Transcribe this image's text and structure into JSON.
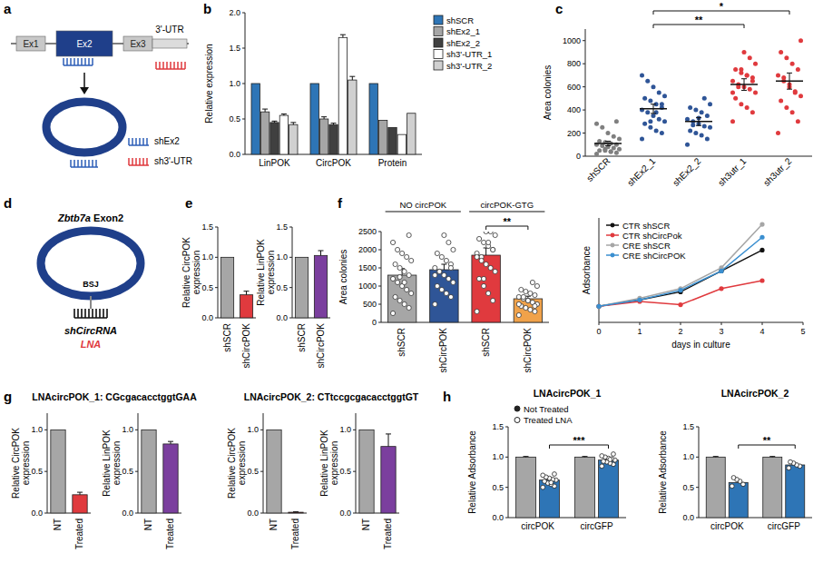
{
  "panel_labels": [
    "a",
    "b",
    "c",
    "d",
    "e",
    "f",
    "g",
    "h"
  ],
  "diagrams": {
    "a": {
      "exons": [
        "Ex1",
        "Ex2",
        "Ex3",
        "3'-UTR"
      ],
      "legend": [
        "shEx2",
        "sh3'-UTR"
      ]
    },
    "d": {
      "title": "Zbtb7a Exon2",
      "junction": "BSJ",
      "targets": [
        "shCircRNA",
        "LNA"
      ]
    }
  },
  "chart_data": [
    {
      "type": "bar",
      "ylabel": "Relative expression",
      "categories": [
        "LinPOK",
        "CircPOK",
        "Protein"
      ],
      "series": [
        {
          "name": "shSCR",
          "color": "#2e75b6",
          "values": [
            1,
            1,
            1
          ]
        },
        {
          "name": "shEx2_1",
          "color": "#a6a6a6",
          "values": [
            0.6,
            0.5,
            0.48
          ],
          "errors": [
            0.04,
            0.03,
            null
          ]
        },
        {
          "name": "shEx2_2",
          "color": "#404040",
          "values": [
            0.45,
            0.42,
            0.38
          ],
          "errors": [
            0.02,
            0.02,
            null
          ]
        },
        {
          "name": "sh3'-UTR_1",
          "color": "#ffffff",
          "values": [
            0.55,
            1.65,
            0.28
          ],
          "errors": [
            0.02,
            0.04,
            null
          ]
        },
        {
          "name": "sh3'-UTR_2",
          "color": "#d0d0d0",
          "values": [
            0.42,
            1.05,
            0.58
          ],
          "errors": [
            0.03,
            0.05,
            null
          ]
        }
      ],
      "ylim": [
        0,
        2
      ],
      "yticks": [
        {
          "value": 0,
          "label": "0.0"
        },
        0.5,
        {
          "value": 1,
          "label": "1.0"
        },
        1.5,
        {
          "value": 2,
          "label": "2.0"
        }
      ],
      "legend": "right"
    },
    {
      "type": "dot",
      "ylabel": "Area colonies",
      "categories": [
        "shSCR",
        "shEx2_1",
        "shEx2_2",
        "sh3utr_1",
        "sh3utr_2"
      ],
      "colors": [
        "#7f7f7f",
        "#2f5597",
        "#2f5597",
        "#e03a3e",
        "#e03a3e"
      ],
      "values": [
        110,
        410,
        300,
        620,
        650
      ],
      "errors": [
        20,
        40,
        35,
        50,
        70
      ],
      "points": [
        [
          20,
          30,
          40,
          50,
          50,
          60,
          70,
          80,
          90,
          100,
          100,
          110,
          120,
          130,
          150,
          170,
          200,
          250,
          280,
          300,
          40,
          60
        ],
        [
          150,
          200,
          220,
          250,
          280,
          300,
          320,
          350,
          380,
          400,
          420,
          450,
          480,
          500,
          520,
          550,
          600,
          650,
          700,
          450,
          380,
          300
        ],
        [
          100,
          150,
          180,
          200,
          220,
          250,
          260,
          280,
          300,
          320,
          350,
          380,
          400,
          420,
          450,
          500,
          330,
          270
        ],
        [
          300,
          380,
          420,
          450,
          500,
          550,
          580,
          600,
          620,
          650,
          680,
          700,
          720,
          750,
          800,
          850,
          900,
          600,
          550,
          650,
          700,
          750
        ],
        [
          200,
          300,
          380,
          420,
          480,
          520,
          560,
          600,
          650,
          700,
          750,
          800,
          850,
          900,
          1000,
          550,
          620,
          680
        ]
      ],
      "ylim": [
        0,
        1100
      ],
      "yticks": [
        0,
        200,
        400,
        600,
        800,
        1000
      ],
      "annotations": [
        {
          "text": "*",
          "from": 1,
          "to": 4
        },
        {
          "text": "**",
          "from": 1,
          "to": 3
        }
      ]
    },
    {
      "type": "bar",
      "ylabel": "Relative CircPOK expression",
      "categories": [
        "shSCR",
        "shCircPOK"
      ],
      "values": [
        1,
        0.38
      ],
      "errors": [
        null,
        0.06
      ],
      "colors": [
        "#a6a6a6",
        "#e03a3e"
      ],
      "ylim": [
        0,
        1.5
      ],
      "yticks": [
        {
          "value": 0,
          "label": "0.0"
        },
        0.5,
        {
          "value": 1,
          "label": "1.0"
        },
        1.5
      ]
    },
    {
      "type": "bar",
      "ylabel": "Relative LinPOK expression",
      "categories": [
        "shSCR",
        "shCircPOK"
      ],
      "values": [
        1,
        1.03
      ],
      "errors": [
        null,
        0.08
      ],
      "colors": [
        "#a6a6a6",
        "#7b3f9e"
      ],
      "ylim": [
        0,
        1.5
      ],
      "yticks": [
        {
          "value": 0,
          "label": "0.0"
        },
        0.5,
        {
          "value": 1,
          "label": "1.0"
        },
        1.5
      ]
    },
    {
      "type": "bar",
      "ylabel": "Area colonies",
      "categories": [
        "shSCR",
        "shCircPOK",
        "shSCR",
        "shCircPOK"
      ],
      "group_labels": [
        "NO circPOK",
        "circPOK-GTG"
      ],
      "colors": [
        "#a6a6a6",
        "#2f5597",
        "#e03a3e",
        "#f0a24a"
      ],
      "values": [
        1300,
        1450,
        1850,
        650
      ],
      "errors": [
        180,
        150,
        200,
        70
      ],
      "points": [
        [
          250,
          400,
          500,
          600,
          700,
          800,
          900,
          1000,
          1100,
          1200,
          1300,
          1400,
          1500,
          1600,
          1700,
          1800,
          1900,
          2000,
          2200,
          2400,
          1100,
          1250
        ],
        [
          500,
          700,
          800,
          900,
          1000,
          1100,
          1200,
          1300,
          1400,
          1500,
          1600,
          1700,
          1800,
          1900,
          2000,
          2200,
          2400,
          1400,
          1300,
          1500
        ],
        [
          300,
          600,
          800,
          1000,
          1200,
          1400,
          1500,
          1600,
          1800,
          1900,
          2000,
          2100,
          2200,
          2300,
          2400,
          2500,
          2500,
          1700,
          1800,
          2000,
          2200,
          1200
        ],
        [
          200,
          300,
          350,
          400,
          450,
          500,
          550,
          600,
          650,
          700,
          750,
          800,
          850,
          900,
          1000,
          1100,
          600,
          700,
          500,
          450
        ]
      ],
      "ylim": [
        0,
        2500
      ],
      "yticks": [
        0,
        500,
        1000,
        1500,
        2000,
        2500
      ],
      "annotations": [
        {
          "text": "**",
          "from": 2,
          "to": 3
        }
      ]
    },
    {
      "type": "line",
      "xlabel": "days in culture",
      "ylabel": "Adsorbance",
      "x": [
        0,
        1,
        2,
        3,
        4
      ],
      "series": [
        {
          "name": "CTR shSCR",
          "color": "#111111",
          "marker": "circle",
          "values": [
            1,
            1.4,
            1.9,
            3.2,
            4.5
          ]
        },
        {
          "name": "CTR shCircPok",
          "color": "#e03a3e",
          "marker": "circle",
          "values": [
            1,
            1.3,
            1.1,
            2.1,
            2.6
          ]
        },
        {
          "name": "CRE shSCR",
          "color": "#a6a6a6",
          "marker": "circle",
          "values": [
            1,
            1.5,
            2.1,
            3.4,
            6.1
          ]
        },
        {
          "name": "CRE shCircPOK",
          "color": "#3a8fd0",
          "marker": "circle",
          "values": [
            1,
            1.4,
            2,
            3.2,
            5.3
          ]
        }
      ],
      "xlim": [
        0,
        5
      ],
      "xticks": [
        0,
        1,
        2,
        3,
        4,
        5
      ],
      "ylim": [
        0,
        6.5
      ],
      "tick_labels": "x",
      "legend": "upper left"
    },
    {
      "type": "bar",
      "title": "LNAcircPOK_1: CGcgacacctggtGAA",
      "ylabel": "Relative CircPOK expression",
      "categories": [
        "NT",
        "Treated"
      ],
      "values": [
        1,
        0.22
      ],
      "errors": [
        null,
        0.03
      ],
      "colors": [
        "#a6a6a6",
        "#e03a3e"
      ],
      "ylim": [
        0,
        1.2
      ],
      "yticks": [
        {
          "value": 0,
          "label": "0.0"
        },
        0.5,
        {
          "value": 1,
          "label": "1.0"
        }
      ]
    },
    {
      "type": "bar",
      "ylabel": "Relative LinPOK expression",
      "categories": [
        "NT",
        "Treated"
      ],
      "values": [
        1,
        0.83
      ],
      "errors": [
        null,
        0.03
      ],
      "colors": [
        "#a6a6a6",
        "#7b3f9e"
      ],
      "ylim": [
        0,
        1.2
      ],
      "yticks": [
        {
          "value": 0,
          "label": "0.0"
        },
        0.5,
        {
          "value": 1,
          "label": "1.0"
        }
      ]
    },
    {
      "type": "bar",
      "title": "LNAcircPOK_2: CTtccgcgacacctggtGT",
      "ylabel": "Relative CircPOK expression",
      "categories": [
        "NT",
        "Treated"
      ],
      "values": [
        1,
        0.01
      ],
      "errors": [
        null,
        0.005
      ],
      "colors": [
        "#a6a6a6",
        "#e03a3e"
      ],
      "ylim": [
        0,
        1.2
      ],
      "yticks": [
        {
          "value": 0,
          "label": "0.0"
        },
        0.5,
        {
          "value": 1,
          "label": "1.0"
        }
      ]
    },
    {
      "type": "bar",
      "ylabel": "Relative LinPOK expression",
      "categories": [
        "NT",
        "Treated"
      ],
      "values": [
        1,
        0.8
      ],
      "errors": [
        null,
        0.15
      ],
      "colors": [
        "#a6a6a6",
        "#7b3f9e"
      ],
      "ylim": [
        0,
        1.2
      ],
      "yticks": [
        {
          "value": 0,
          "label": "0.0"
        },
        0.5,
        {
          "value": 1,
          "label": "1.0"
        }
      ]
    },
    {
      "type": "bar",
      "title": "LNAcircPOK_1",
      "ylabel": "Relative Adsorbance",
      "categories": [
        "circPOK",
        "circGFP"
      ],
      "series": [
        {
          "name": "Not Treated",
          "color": "#a6a6a6",
          "marker": "filled",
          "values": [
            1,
            1
          ],
          "errors": [
            0.01,
            0.01
          ]
        },
        {
          "name": "Treated LNA",
          "color": "#2e75b6",
          "marker": "open",
          "values": [
            0.62,
            0.95
          ],
          "errors": [
            0.03,
            0.03
          ],
          "points": [
            [
              0.5,
              0.52,
              0.55,
              0.57,
              0.6,
              0.62,
              0.63,
              0.65,
              0.67,
              0.7,
              0.72,
              0.58
            ],
            [
              0.85,
              0.88,
              0.9,
              0.92,
              0.93,
              0.95,
              0.97,
              0.98,
              1,
              1.02,
              1.05,
              0.96
            ]
          ]
        }
      ],
      "ylim": [
        0,
        1.5
      ],
      "yticks": [
        {
          "value": 0,
          "label": "0.0"
        },
        0.5,
        {
          "value": 1,
          "label": "1.0"
        },
        1.5
      ],
      "annotations": [
        {
          "text": "***",
          "from": 0,
          "to": 1
        }
      ],
      "legend": "upper left"
    },
    {
      "type": "bar",
      "title": "LNAcircPOK_2",
      "ylabel": "Relative Adsorbance",
      "categories": [
        "circPOK",
        "circGFP"
      ],
      "series": [
        {
          "color": "#a6a6a6",
          "marker": "filled",
          "values": [
            1,
            1
          ],
          "errors": [
            0.01,
            0.01
          ]
        },
        {
          "color": "#2e75b6",
          "marker": "open",
          "values": [
            0.58,
            0.87
          ],
          "errors": [
            0.03,
            0.02
          ],
          "points": [
            [
              0.52,
              0.55,
              0.6,
              0.63,
              0.66
            ],
            [
              0.82,
              0.85,
              0.87,
              0.9,
              0.92
            ]
          ]
        }
      ],
      "ylim": [
        0,
        1.5
      ],
      "yticks": [
        {
          "value": 0,
          "label": "0.0"
        },
        0.5,
        {
          "value": 1,
          "label": "1.0"
        },
        1.5
      ],
      "annotations": [
        {
          "text": "**",
          "from": 0,
          "to": 1
        }
      ]
    }
  ]
}
